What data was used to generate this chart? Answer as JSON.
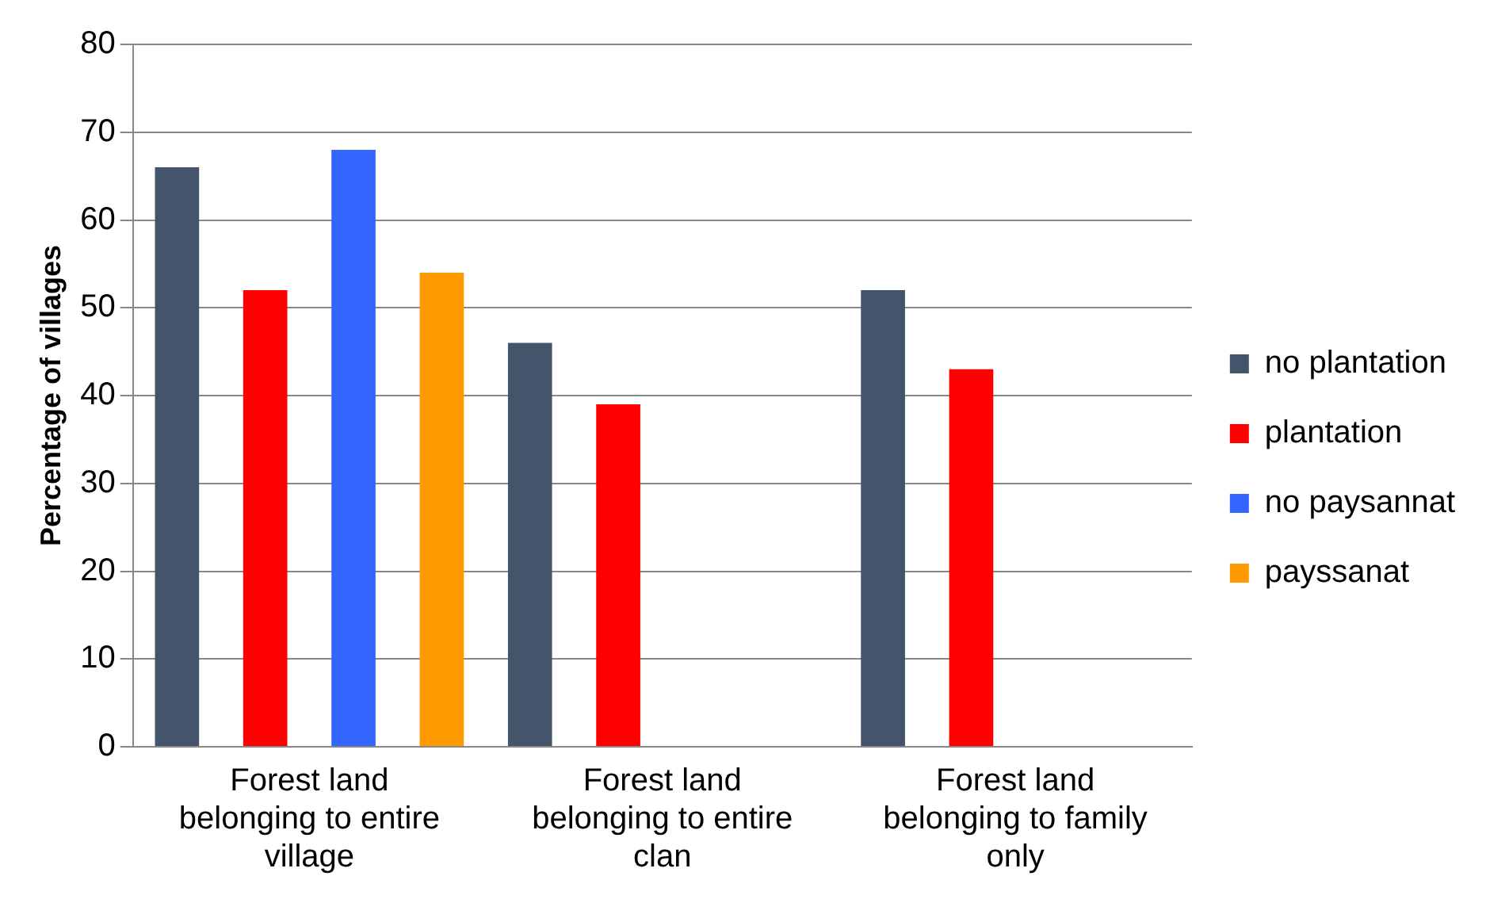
{
  "chart_data": {
    "type": "bar",
    "ylabel": "Percentage of villages",
    "categories": [
      "Forest land belonging to entire village",
      "Forest land belonging to entire clan",
      "Forest land belonging to family only"
    ],
    "series": [
      {
        "name": "no plantation",
        "color": "#44546a",
        "values": [
          66,
          46,
          52
        ]
      },
      {
        "name": "plantation",
        "color": "#ff0000",
        "values": [
          52,
          39,
          43
        ]
      },
      {
        "name": "no paysannat",
        "color": "#3366ff",
        "values": [
          68,
          null,
          null
        ]
      },
      {
        "name": "payssanat",
        "color": "#ff9900",
        "values": [
          54,
          null,
          null
        ]
      }
    ],
    "ylim": [
      0,
      80
    ],
    "yticks": [
      0,
      10,
      20,
      30,
      40,
      50,
      60,
      70,
      80
    ],
    "grid": "y",
    "legend": "right"
  }
}
